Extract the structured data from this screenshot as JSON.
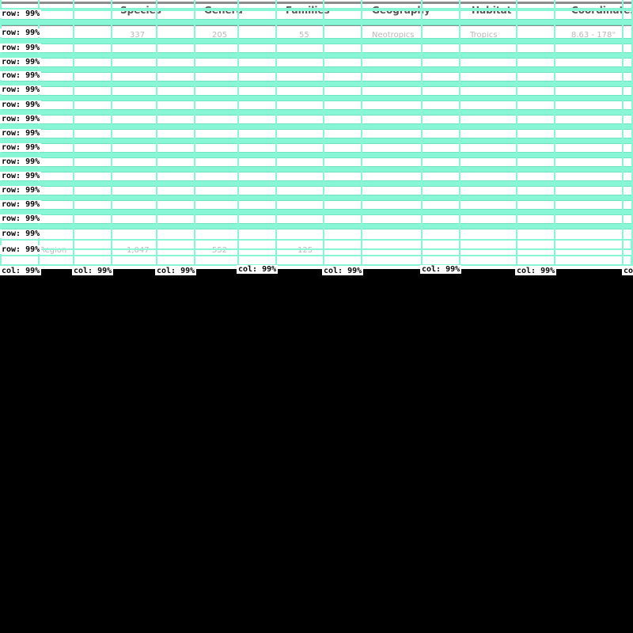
{
  "table": {
    "headers": [
      "Species",
      "Genera",
      "Families",
      "Geography",
      "Habitat",
      "Coordinates"
    ],
    "row_values": [
      [
        "337",
        "205",
        "55",
        "Neotropics",
        "Tropics",
        "8.63 - 178°"
      ],
      [
        "1,047",
        "552",
        "125",
        "",
        "",
        ""
      ]
    ],
    "last_row_label": "Region"
  },
  "detection": {
    "row_label": "row: 99%",
    "col_label": "col: 99%",
    "row_color": "#89f7d6",
    "col_color": "#89f7d6"
  }
}
